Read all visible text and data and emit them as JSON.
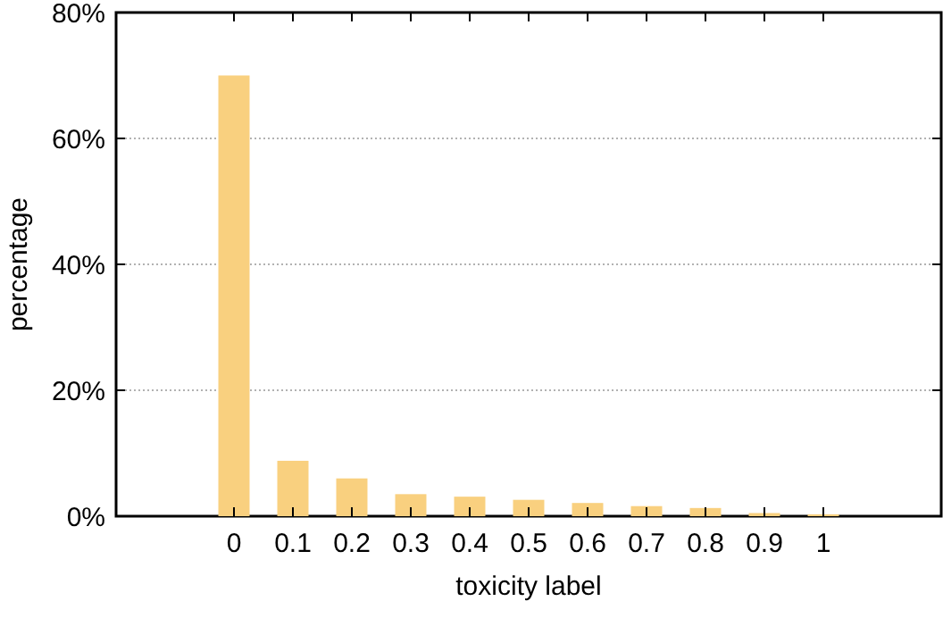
{
  "chart_data": {
    "type": "bar",
    "xlabel": "toxicity label",
    "ylabel": "percentage",
    "categories": [
      null,
      "0",
      "0.1",
      "0.2",
      "0.3",
      "0.4",
      "0.5",
      "0.6",
      "0.7",
      "0.8",
      "0.9",
      "1"
    ],
    "values": [
      null,
      70,
      8.8,
      6.0,
      3.5,
      3.1,
      2.6,
      2.1,
      1.6,
      1.3,
      0.5,
      0.3
    ],
    "color": "#f9d07f",
    "ylim": [
      0,
      80
    ],
    "yticks": [
      {
        "value": 0,
        "label": "0%"
      },
      {
        "value": 20,
        "label": "20%"
      },
      {
        "value": 40,
        "label": "40%"
      },
      {
        "value": 60,
        "label": "60%"
      },
      {
        "value": 80,
        "label": "80%"
      }
    ],
    "grid": "y"
  }
}
